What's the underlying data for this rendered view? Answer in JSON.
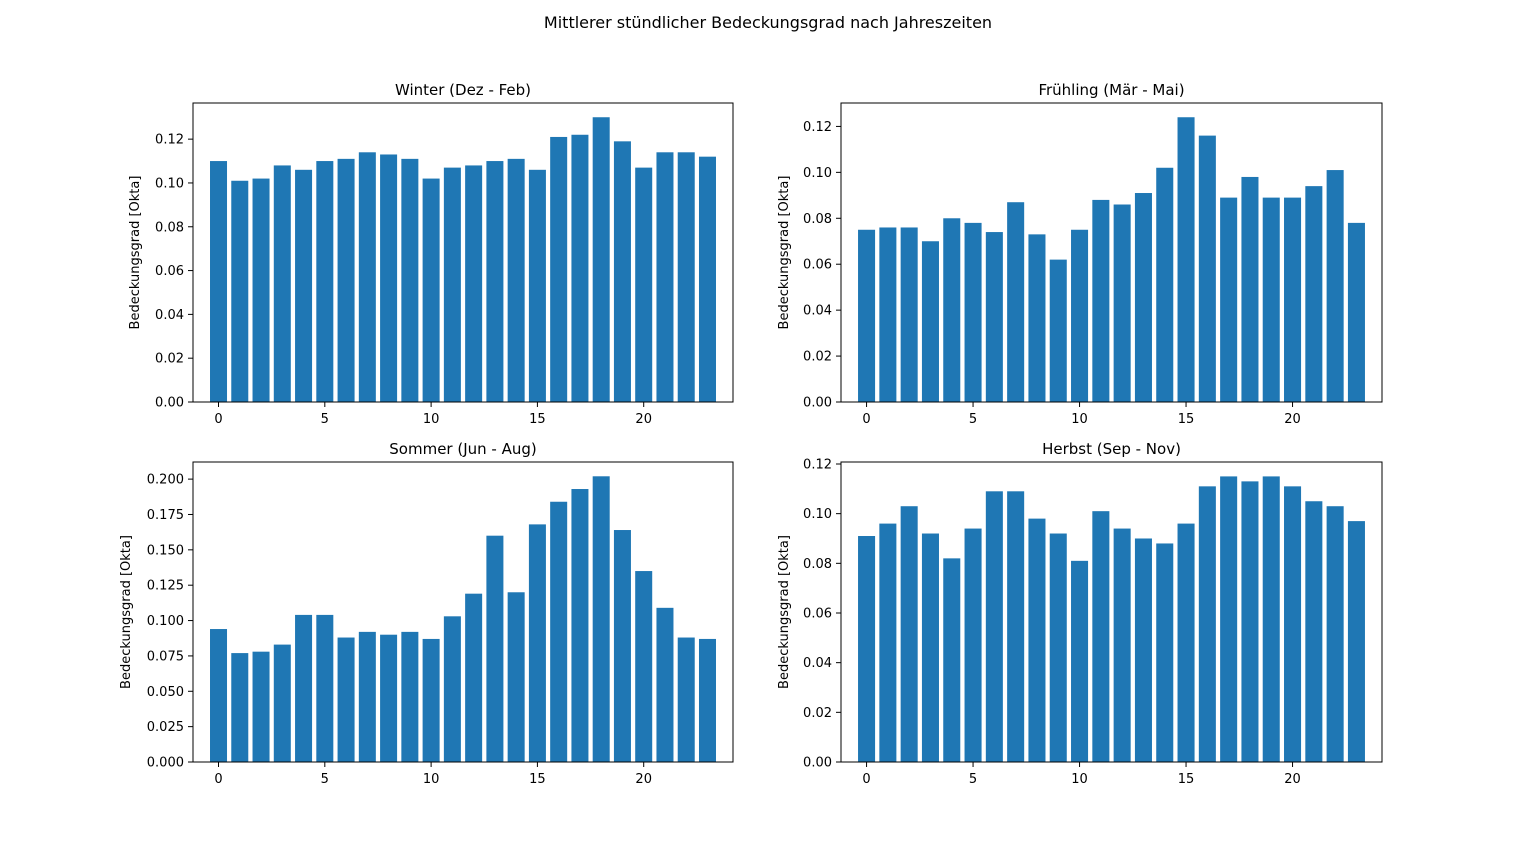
{
  "figure": {
    "title": "Mittlerer stündlicher Bedeckungsgrad nach Jahreszeiten"
  },
  "chart_data": [
    {
      "type": "bar",
      "title": "Winter (Dez - Feb)",
      "xlabel": "",
      "ylabel": "Bedeckungsgrad [Okta]",
      "x": [
        0,
        1,
        2,
        3,
        4,
        5,
        6,
        7,
        8,
        9,
        10,
        11,
        12,
        13,
        14,
        15,
        16,
        17,
        18,
        19,
        20,
        21,
        22,
        23
      ],
      "values": [
        0.11,
        0.101,
        0.102,
        0.108,
        0.106,
        0.11,
        0.111,
        0.114,
        0.113,
        0.111,
        0.102,
        0.107,
        0.108,
        0.11,
        0.111,
        0.106,
        0.121,
        0.122,
        0.13,
        0.119,
        0.107,
        0.114,
        0.114,
        0.112
      ],
      "xticks": [
        0,
        5,
        10,
        15,
        20
      ],
      "yticks": [
        0.0,
        0.02,
        0.04,
        0.06,
        0.08,
        0.1,
        0.12
      ],
      "ytick_labels": [
        "0.00",
        "0.02",
        "0.04",
        "0.06",
        "0.08",
        "0.10",
        "0.12"
      ],
      "xlim": [
        -1.2,
        24.2
      ],
      "ylim": [
        0,
        0.1365
      ],
      "color": "#1f77b4",
      "grid": false
    },
    {
      "type": "bar",
      "title": "Frühling (Mär - Mai)",
      "xlabel": "",
      "ylabel": "Bedeckungsgrad [Okta]",
      "x": [
        0,
        1,
        2,
        3,
        4,
        5,
        6,
        7,
        8,
        9,
        10,
        11,
        12,
        13,
        14,
        15,
        16,
        17,
        18,
        19,
        20,
        21,
        22,
        23
      ],
      "values": [
        0.075,
        0.076,
        0.076,
        0.07,
        0.08,
        0.078,
        0.074,
        0.087,
        0.073,
        0.062,
        0.075,
        0.088,
        0.086,
        0.091,
        0.102,
        0.124,
        0.116,
        0.089,
        0.098,
        0.089,
        0.089,
        0.094,
        0.101,
        0.078
      ],
      "xticks": [
        0,
        5,
        10,
        15,
        20
      ],
      "yticks": [
        0.0,
        0.02,
        0.04,
        0.06,
        0.08,
        0.1,
        0.12
      ],
      "ytick_labels": [
        "0.00",
        "0.02",
        "0.04",
        "0.06",
        "0.08",
        "0.10",
        "0.12"
      ],
      "xlim": [
        -1.2,
        24.2
      ],
      "ylim": [
        0,
        0.1302
      ],
      "color": "#1f77b4",
      "grid": false
    },
    {
      "type": "bar",
      "title": "Sommer (Jun - Aug)",
      "xlabel": "",
      "ylabel": "Bedeckungsgrad [Okta]",
      "x": [
        0,
        1,
        2,
        3,
        4,
        5,
        6,
        7,
        8,
        9,
        10,
        11,
        12,
        13,
        14,
        15,
        16,
        17,
        18,
        19,
        20,
        21,
        22,
        23
      ],
      "values": [
        0.094,
        0.077,
        0.078,
        0.083,
        0.104,
        0.104,
        0.088,
        0.092,
        0.09,
        0.092,
        0.087,
        0.103,
        0.119,
        0.16,
        0.12,
        0.168,
        0.184,
        0.193,
        0.202,
        0.164,
        0.135,
        0.109,
        0.088,
        0.087
      ],
      "xticks": [
        0,
        5,
        10,
        15,
        20
      ],
      "yticks": [
        0.0,
        0.025,
        0.05,
        0.075,
        0.1,
        0.125,
        0.15,
        0.175,
        0.2
      ],
      "ytick_labels": [
        "0.000",
        "0.025",
        "0.050",
        "0.075",
        "0.100",
        "0.125",
        "0.150",
        "0.175",
        "0.200"
      ],
      "xlim": [
        -1.2,
        24.2
      ],
      "ylim": [
        0,
        0.2121
      ],
      "color": "#1f77b4",
      "grid": false
    },
    {
      "type": "bar",
      "title": "Herbst (Sep - Nov)",
      "xlabel": "",
      "ylabel": "Bedeckungsgrad [Okta]",
      "x": [
        0,
        1,
        2,
        3,
        4,
        5,
        6,
        7,
        8,
        9,
        10,
        11,
        12,
        13,
        14,
        15,
        16,
        17,
        18,
        19,
        20,
        21,
        22,
        23
      ],
      "values": [
        0.091,
        0.096,
        0.103,
        0.092,
        0.082,
        0.094,
        0.109,
        0.109,
        0.098,
        0.092,
        0.081,
        0.101,
        0.094,
        0.09,
        0.088,
        0.096,
        0.111,
        0.115,
        0.113,
        0.115,
        0.111,
        0.105,
        0.103,
        0.097
      ],
      "xticks": [
        0,
        5,
        10,
        15,
        20
      ],
      "yticks": [
        0.0,
        0.02,
        0.04,
        0.06,
        0.08,
        0.1,
        0.12
      ],
      "ytick_labels": [
        "0.00",
        "0.02",
        "0.04",
        "0.06",
        "0.08",
        "0.10",
        "0.12"
      ],
      "xlim": [
        -1.2,
        24.2
      ],
      "ylim": [
        0,
        0.1208
      ],
      "color": "#1f77b4",
      "grid": false
    }
  ]
}
